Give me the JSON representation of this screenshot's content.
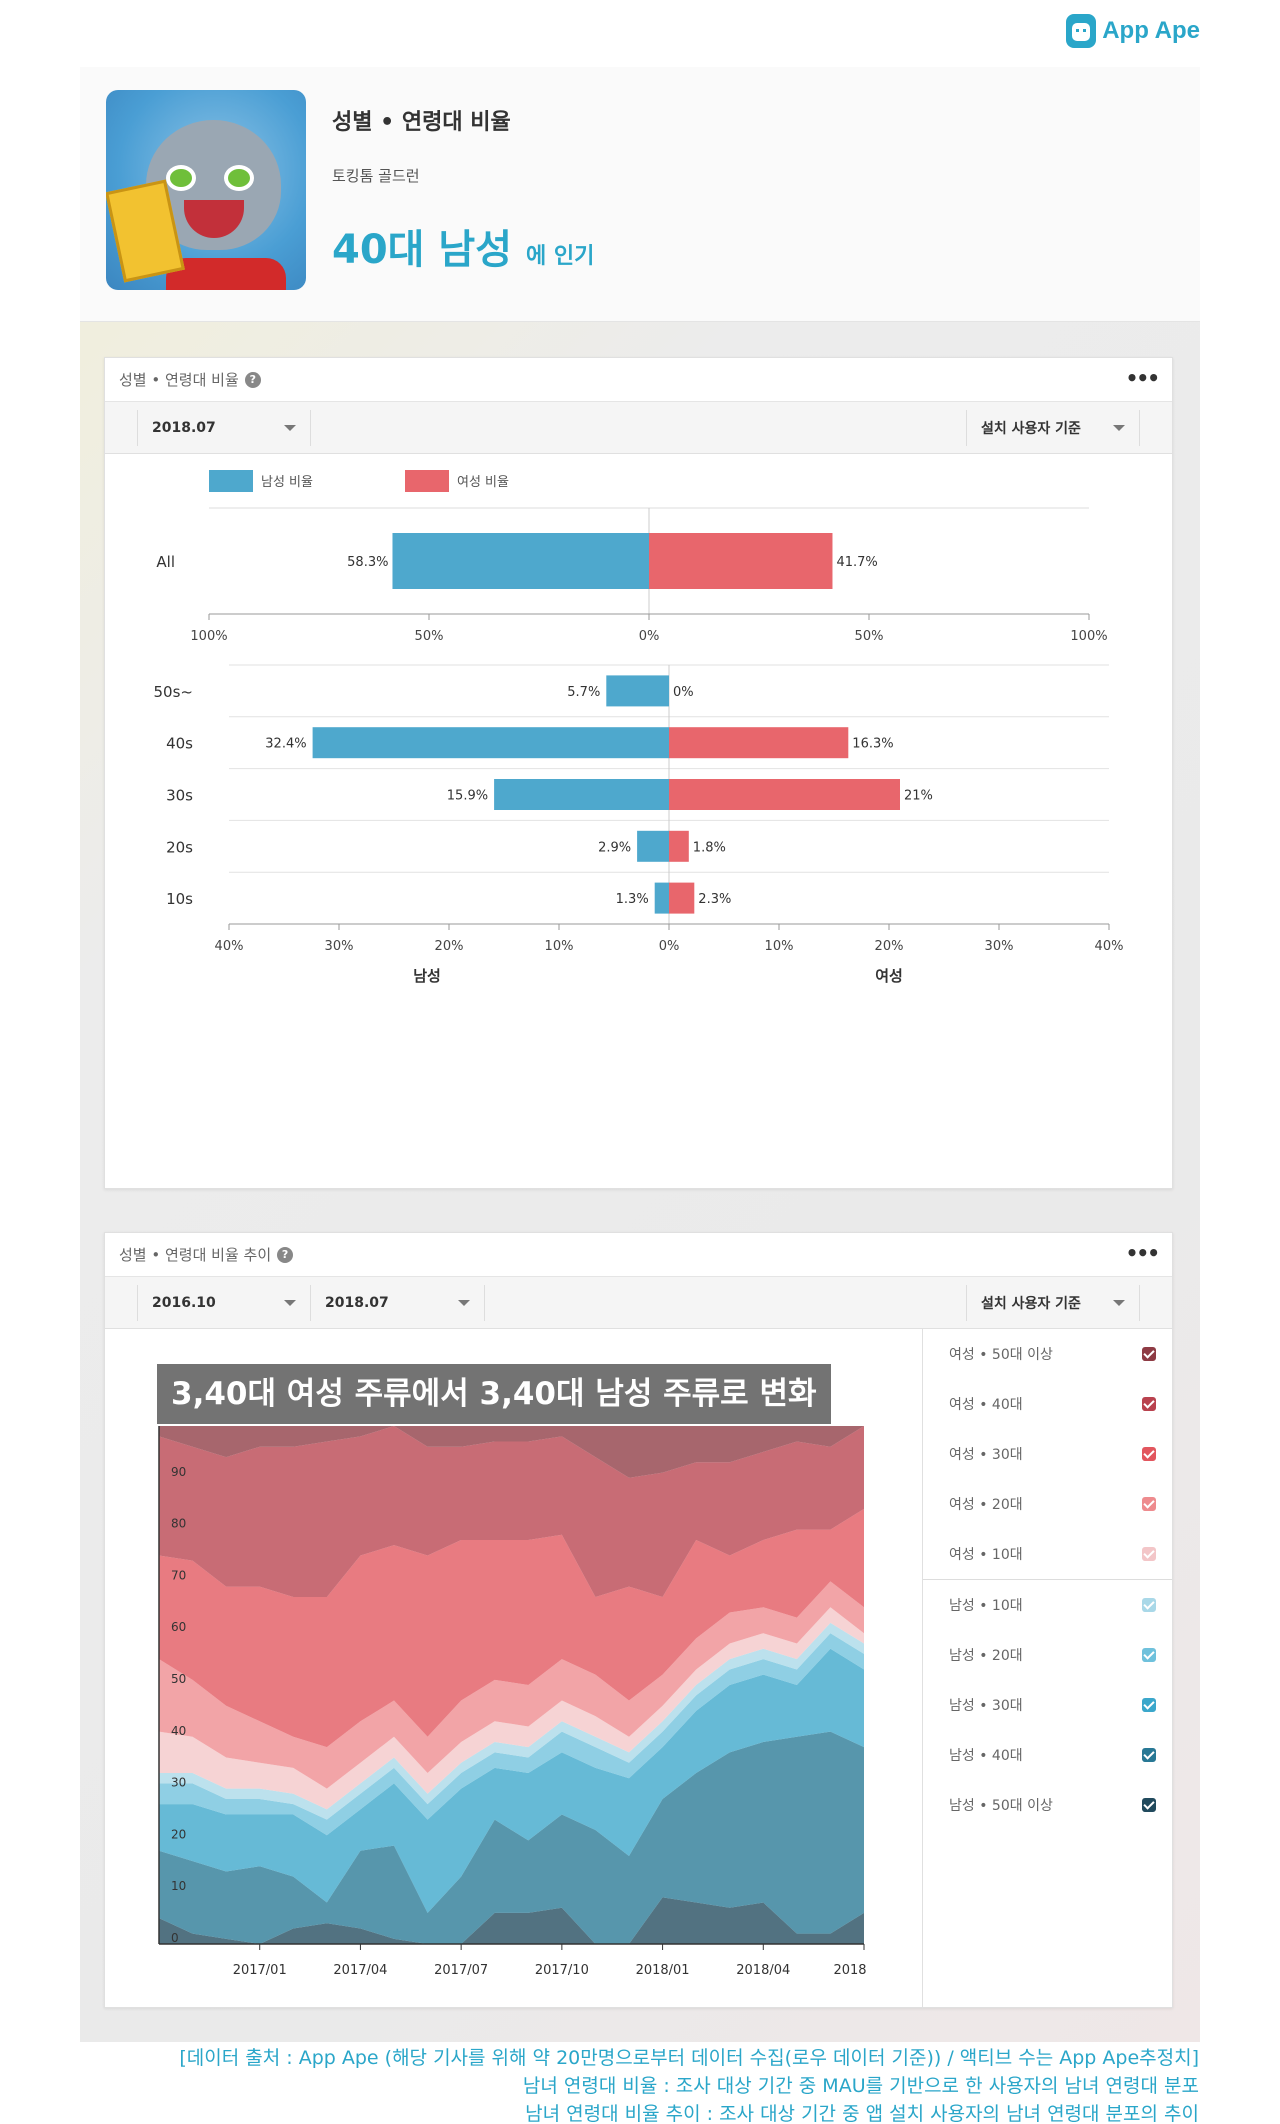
{
  "brand": {
    "logo_text": "App Ape",
    "accent": "#2aa6c9"
  },
  "app_card": {
    "title": "성별 • 연령대 비율",
    "app_name": "토킹톰 골드런",
    "highlight": "40대 남성",
    "highlight_suffix": "에 인기"
  },
  "ratio_panel": {
    "title": "성별 • 연령대 비율",
    "help_icon": "?",
    "more_icon": "•••",
    "date_select": "2018.07",
    "basis_select": "설치 사용자 기준",
    "legend": {
      "male": "남성 비율",
      "female": "여성 비율"
    },
    "male_label": "남성",
    "female_label": "여성"
  },
  "trend_panel": {
    "title": "성별 • 연령대 비율 추이",
    "help_icon": "?",
    "more_icon": "•••",
    "start_select": "2016.10",
    "end_select": "2018.07",
    "basis_select": "설치 사용자 기준",
    "caption": "3,40대 여성 주류에서 3,40대 남성 주류로 변화",
    "legend_items": [
      {
        "label": "여성 • 50대 이상",
        "color": "#8e3b44"
      },
      {
        "label": "여성 • 40대",
        "color": "#b9424e"
      },
      {
        "label": "여성 • 30대",
        "color": "#e2565e"
      },
      {
        "label": "여성 • 20대",
        "color": "#ee8b8e"
      },
      {
        "label": "여성 • 10대",
        "color": "#f3c6c8"
      },
      {
        "label": "남성 • 10대",
        "color": "#a9d8e8"
      },
      {
        "label": "남성 • 20대",
        "color": "#6fc1dc"
      },
      {
        "label": "남성 • 30대",
        "color": "#3ba7cb"
      },
      {
        "label": "남성 • 40대",
        "color": "#287895"
      },
      {
        "label": "남성 • 50대 이상",
        "color": "#214a5d"
      }
    ]
  },
  "chart_data": [
    {
      "type": "bar",
      "orientation": "diverging-horizontal",
      "categories": [
        "All"
      ],
      "series": [
        {
          "name": "남성 비율",
          "values": [
            58.3
          ],
          "labels": [
            "58.3%"
          ],
          "color": "#4ea8cd"
        },
        {
          "name": "여성 비율",
          "values": [
            41.7
          ],
          "labels": [
            "41.7%"
          ],
          "color": "#e8666c"
        }
      ],
      "xlim": [
        -100,
        100
      ],
      "ticks": [
        "100%",
        "50%",
        "0%",
        "50%",
        "100%"
      ],
      "tick_values": [
        -100,
        -50,
        0,
        50,
        100
      ],
      "legend": "top-left"
    },
    {
      "type": "bar",
      "orientation": "diverging-horizontal",
      "categories": [
        "50s~",
        "40s",
        "30s",
        "20s",
        "10s"
      ],
      "series": [
        {
          "name": "남성",
          "values": [
            5.7,
            32.4,
            15.9,
            2.9,
            1.3
          ],
          "labels": [
            "5.7%",
            "32.4%",
            "15.9%",
            "2.9%",
            "1.3%"
          ],
          "color": "#4ea8cd"
        },
        {
          "name": "여성",
          "values": [
            0,
            16.3,
            21,
            1.8,
            2.3
          ],
          "labels": [
            "0%",
            "16.3%",
            "21%",
            "1.8%",
            "2.3%"
          ],
          "color": "#e8666c"
        }
      ],
      "xlim": [
        -40,
        40
      ],
      "ticks": [
        "40%",
        "30%",
        "20%",
        "10%",
        "0%",
        "10%",
        "20%",
        "30%",
        "40%"
      ],
      "tick_values": [
        -40,
        -30,
        -20,
        -10,
        0,
        10,
        20,
        30,
        40
      ],
      "xlabel_left": "남성",
      "xlabel_right": "여성"
    },
    {
      "type": "area",
      "stacked": true,
      "x": [
        "2016/10",
        "2016/11",
        "2016/12",
        "2017/01",
        "2017/02",
        "2017/03",
        "2017/04",
        "2017/05",
        "2017/06",
        "2017/07",
        "2017/08",
        "2017/09",
        "2017/10",
        "2017/11",
        "2017/12",
        "2018/01",
        "2018/02",
        "2018/03",
        "2018/04",
        "2018/05",
        "2018/06",
        "2018/07"
      ],
      "x_ticks": [
        "2017/01",
        "2017/04",
        "2017/07",
        "2017/10",
        "2018/01",
        "2018/04",
        "2018"
      ],
      "y_ticks": [
        "0",
        "10",
        "20",
        "30",
        "40",
        "50",
        "60",
        "70",
        "80",
        "90"
      ],
      "ylim": [
        0,
        100
      ],
      "series": [
        {
          "name": "남성 • 50대 이상",
          "color": "#214a5d",
          "values": [
            5,
            2,
            1,
            0,
            3,
            4,
            3,
            1,
            0,
            0,
            6,
            6,
            7,
            0,
            0,
            9,
            8,
            7,
            8,
            2,
            2,
            6
          ]
        },
        {
          "name": "남성 • 40대",
          "color": "#287895",
          "values": [
            13,
            14,
            13,
            15,
            10,
            4,
            15,
            18,
            6,
            13,
            18,
            14,
            18,
            22,
            17,
            19,
            25,
            30,
            31,
            38,
            39,
            32
          ]
        },
        {
          "name": "남성 • 30대",
          "color": "#3ba7cb",
          "values": [
            9,
            11,
            11,
            10,
            12,
            13,
            8,
            12,
            18,
            17,
            10,
            13,
            12,
            12,
            15,
            10,
            12,
            13,
            13,
            10,
            16,
            15
          ]
        },
        {
          "name": "남성 • 20대",
          "color": "#6fc1dc",
          "values": [
            4,
            4,
            3,
            3,
            2,
            3,
            3,
            3,
            3,
            3,
            3,
            3,
            4,
            4,
            3,
            3,
            3,
            3,
            3,
            3,
            3,
            3
          ]
        },
        {
          "name": "남성 • 10대",
          "color": "#a9d8e8",
          "values": [
            2,
            2,
            2,
            2,
            2,
            2,
            2,
            2,
            2,
            2,
            2,
            2,
            2,
            2,
            2,
            2,
            2,
            2,
            2,
            2,
            2,
            2
          ]
        },
        {
          "name": "여성 • 10대",
          "color": "#f3c6c8",
          "values": [
            8,
            7,
            6,
            5,
            5,
            4,
            4,
            4,
            4,
            4,
            4,
            4,
            4,
            4,
            3,
            3,
            3,
            3,
            3,
            3,
            3,
            2
          ]
        },
        {
          "name": "여성 • 20대",
          "color": "#ee8b8e",
          "values": [
            14,
            11,
            10,
            8,
            6,
            8,
            8,
            7,
            7,
            8,
            8,
            8,
            8,
            8,
            7,
            6,
            6,
            6,
            5,
            5,
            5,
            5
          ]
        },
        {
          "name": "여성 • 30대",
          "color": "#e2565e",
          "values": [
            20,
            23,
            23,
            26,
            27,
            29,
            32,
            30,
            35,
            31,
            27,
            28,
            24,
            15,
            22,
            15,
            19,
            11,
            13,
            17,
            10,
            19
          ]
        },
        {
          "name": "여성 • 40대",
          "color": "#b9424e",
          "values": [
            23,
            22,
            25,
            27,
            29,
            30,
            23,
            23,
            21,
            18,
            19,
            19,
            19,
            27,
            21,
            24,
            15,
            18,
            17,
            17,
            16,
            16
          ]
        },
        {
          "name": "여성 • 50대 이상",
          "color": "#8e3b44",
          "values": [
            2,
            4,
            6,
            4,
            4,
            3,
            2,
            0,
            4,
            4,
            3,
            3,
            2,
            6,
            10,
            9,
            7,
            7,
            5,
            3,
            4,
            0
          ]
        }
      ]
    }
  ],
  "footer": {
    "line1": "[데이터 출처 : App Ape (해당 기사를 위해 약 20만명으로부터 데이터 수집(로우 데이터 기준)) / 액티브 수는 App Ape추정치]",
    "line2": "남녀 연령대 비율 : 조사 대상 기간 중 MAU를 기반으로 한 사용자의 남녀 연령대 분포",
    "line3": "남녀 연령대 비율 추이 : 조사 대상 기간 중 앱 설치 사용자의 남녀 연령대 분포의 추이"
  }
}
